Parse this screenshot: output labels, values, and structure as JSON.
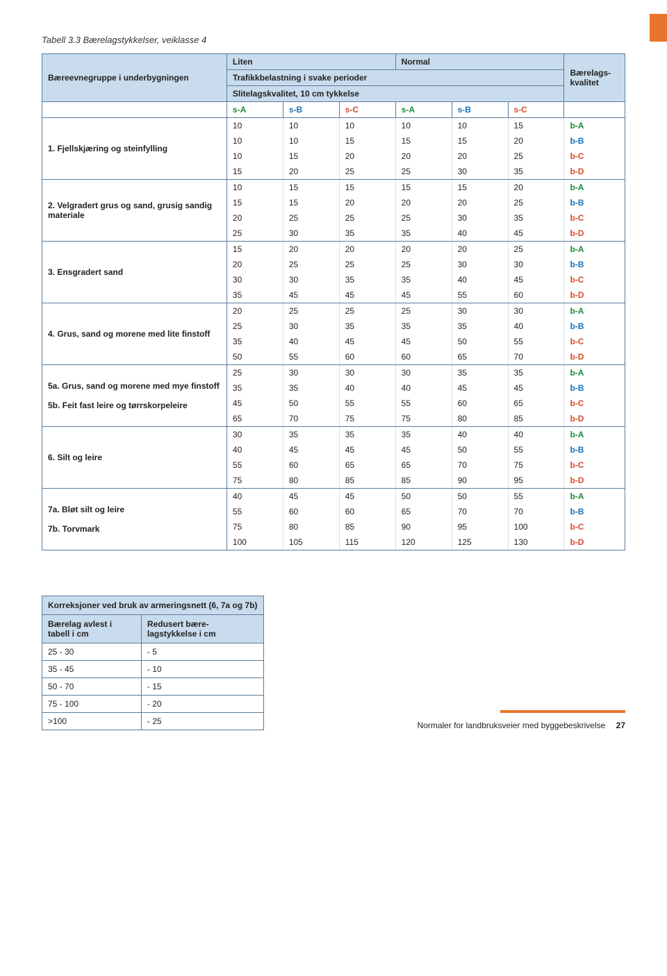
{
  "title": "Tabell 3.3 Bærelagstykkelser, veiklasse 4",
  "header": {
    "left_label": "Bæreevnegruppe i underbygningen",
    "liten": "Liten",
    "normal": "Normal",
    "traf": "Trafikkbelastning i svake perioder",
    "slit": "Slitelagskvalitet, 10 cm tykkelse",
    "bkval": "Bærelags-\nkvalitet",
    "sub_cols": [
      "s-A",
      "s-B",
      "s-C",
      "s-A",
      "s-B",
      "s-C"
    ],
    "sub_colors": [
      "#1b8a3a",
      "#1670b8",
      "#d84b2a",
      "#1b8a3a",
      "#1670b8",
      "#d84b2a"
    ]
  },
  "qual_colors": {
    "b-A": "#1b8a3a",
    "b-B": "#1670b8",
    "b-C": "#d84b2a",
    "b-D": "#d84b2a"
  },
  "groups": [
    {
      "label": "1.  Fjellskjæring og steinfylling",
      "rows": [
        {
          "v": [
            10,
            10,
            10,
            10,
            10,
            15
          ],
          "q": "b-A"
        },
        {
          "v": [
            10,
            10,
            15,
            15,
            15,
            20
          ],
          "q": "b-B"
        },
        {
          "v": [
            10,
            15,
            20,
            20,
            20,
            25
          ],
          "q": "b-C"
        },
        {
          "v": [
            15,
            20,
            25,
            25,
            30,
            35
          ],
          "q": "b-D"
        }
      ]
    },
    {
      "label": "2.  Velgradert grus og sand, grusig sandig materiale",
      "rows": [
        {
          "v": [
            10,
            15,
            15,
            15,
            15,
            20
          ],
          "q": "b-A"
        },
        {
          "v": [
            15,
            15,
            20,
            20,
            20,
            25
          ],
          "q": "b-B"
        },
        {
          "v": [
            20,
            25,
            25,
            25,
            30,
            35
          ],
          "q": "b-C"
        },
        {
          "v": [
            25,
            30,
            35,
            35,
            40,
            45
          ],
          "q": "b-D"
        }
      ]
    },
    {
      "label": "3.  Ensgradert sand",
      "rows": [
        {
          "v": [
            15,
            20,
            20,
            20,
            20,
            25
          ],
          "q": "b-A"
        },
        {
          "v": [
            20,
            25,
            25,
            25,
            30,
            30
          ],
          "q": "b-B"
        },
        {
          "v": [
            30,
            30,
            35,
            35,
            40,
            45
          ],
          "q": "b-C"
        },
        {
          "v": [
            35,
            45,
            45,
            45,
            55,
            60
          ],
          "q": "b-D"
        }
      ]
    },
    {
      "label": "4.  Grus, sand og morene med lite finstoff",
      "rows": [
        {
          "v": [
            20,
            25,
            25,
            25,
            30,
            30
          ],
          "q": "b-A"
        },
        {
          "v": [
            25,
            30,
            35,
            35,
            35,
            40
          ],
          "q": "b-B"
        },
        {
          "v": [
            35,
            40,
            45,
            45,
            50,
            55
          ],
          "q": "b-C"
        },
        {
          "v": [
            50,
            55,
            60,
            60,
            65,
            70
          ],
          "q": "b-D"
        }
      ]
    },
    {
      "label": "5a.  Grus, sand og morene med mye finstoff\n5b.  Feit fast leire og tørrskorpeleire",
      "rows": [
        {
          "v": [
            25,
            30,
            30,
            30,
            35,
            35
          ],
          "q": "b-A"
        },
        {
          "v": [
            35,
            35,
            40,
            40,
            45,
            45
          ],
          "q": "b-B"
        },
        {
          "v": [
            45,
            50,
            55,
            55,
            60,
            65
          ],
          "q": "b-C"
        },
        {
          "v": [
            65,
            70,
            75,
            75,
            80,
            85
          ],
          "q": "b-D"
        }
      ]
    },
    {
      "label": "6.  Silt og leire",
      "rows": [
        {
          "v": [
            30,
            35,
            35,
            35,
            40,
            40
          ],
          "q": "b-A"
        },
        {
          "v": [
            40,
            45,
            45,
            45,
            50,
            55
          ],
          "q": "b-B"
        },
        {
          "v": [
            55,
            60,
            65,
            65,
            70,
            75
          ],
          "q": "b-C"
        },
        {
          "v": [
            75,
            80,
            85,
            85,
            90,
            95
          ],
          "q": "b-D"
        }
      ]
    },
    {
      "label": "7a.  Bløt silt og leire\n7b.  Torvmark",
      "rows": [
        {
          "v": [
            40,
            45,
            45,
            50,
            50,
            55
          ],
          "q": "b-A"
        },
        {
          "v": [
            55,
            60,
            60,
            65,
            70,
            70
          ],
          "q": "b-B"
        },
        {
          "v": [
            75,
            80,
            85,
            90,
            95,
            100
          ],
          "q": "b-C"
        },
        {
          "v": [
            100,
            105,
            115,
            120,
            125,
            130
          ],
          "q": "b-D"
        }
      ]
    }
  ],
  "corrections": {
    "title": "Korreksjoner ved bruk av armeringsnett (6, 7a og 7b)",
    "h1": "Bærelag avlest i tabell i cm",
    "h2": "Redusert bære- lagstykkelse i cm",
    "rows": [
      [
        "25 - 30",
        "- 5"
      ],
      [
        "35 - 45",
        "- 10"
      ],
      [
        "50 - 70",
        "- 15"
      ],
      [
        "75 - 100",
        "- 20"
      ],
      [
        ">100",
        "- 25"
      ]
    ]
  },
  "footer": {
    "text": "Normaler for landbruksveier med byggebeskrivelse",
    "page": "27"
  }
}
